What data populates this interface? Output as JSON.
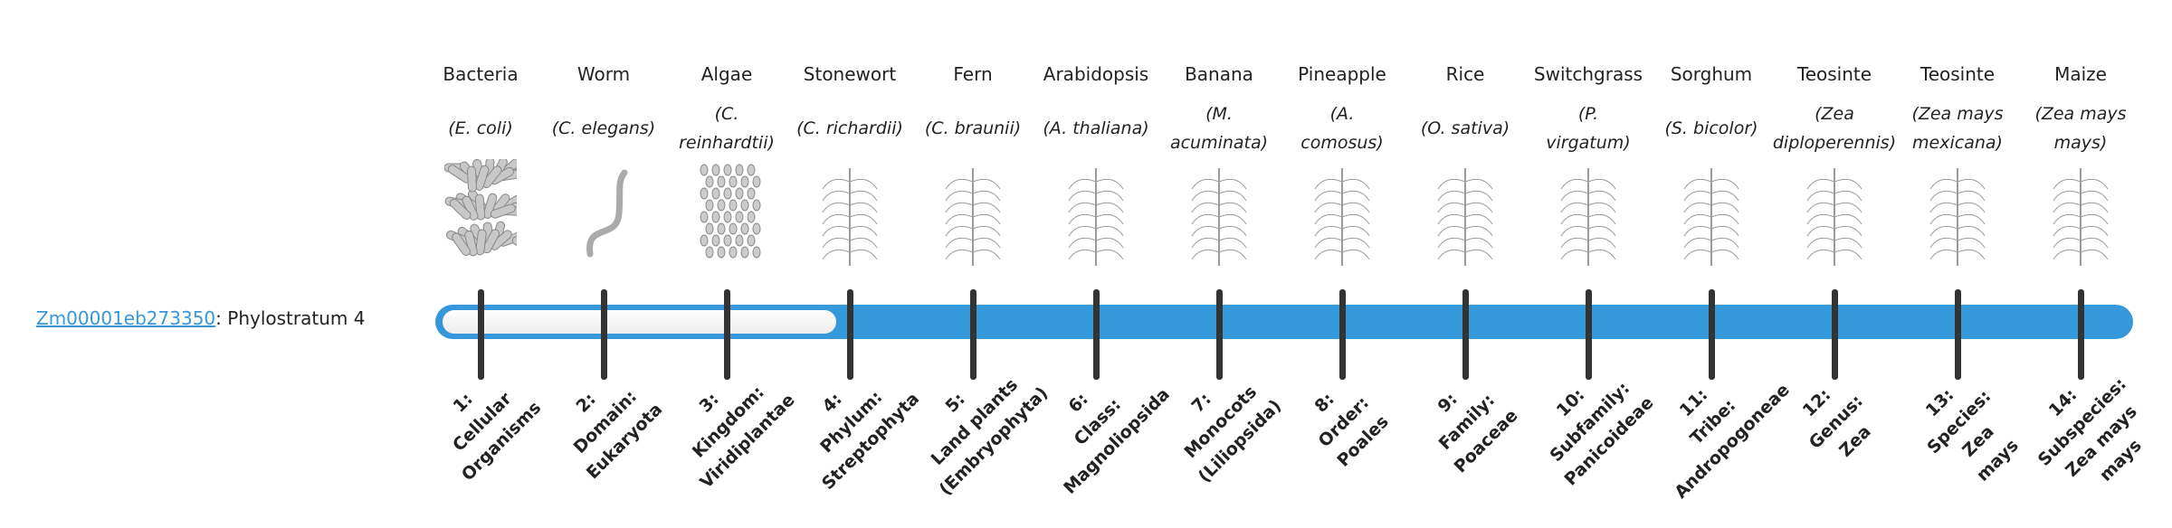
{
  "gene": {
    "id": "Zm00001eb273350",
    "suffix": ": Phylostratum 4"
  },
  "current_stratum": 4,
  "colors": {
    "accent": "#3498db",
    "tick": "#333333"
  },
  "organisms": [
    {
      "common": "Bacteria",
      "scientific": "(E. coli)",
      "icon": "bacteria-icon",
      "stratum": "1:\nCellular\nOrganisms"
    },
    {
      "common": "Worm",
      "scientific": "(C. elegans)",
      "icon": "worm-icon",
      "stratum": "2:\nDomain:\nEukaryota"
    },
    {
      "common": "Algae",
      "scientific": "(C.\nreinhardtii)",
      "icon": "algae-icon",
      "stratum": "3:\nKingdom:\nViridiplantae"
    },
    {
      "common": "Stonewort",
      "scientific": "(C. richardii)",
      "icon": "stonewort-icon",
      "stratum": "4:\nPhylum:\nStreptophyta"
    },
    {
      "common": "Fern",
      "scientific": "(C. braunii)",
      "icon": "fern-icon",
      "stratum": "5:\nLand plants\n(Embryophyta)"
    },
    {
      "common": "Arabidopsis",
      "scientific": "(A. thaliana)",
      "icon": "arabidopsis-icon",
      "stratum": "6:\nClass:\nMagnoliopsida"
    },
    {
      "common": "Banana",
      "scientific": "(M.\nacuminata)",
      "icon": "banana-icon",
      "stratum": "7:\nMonocots\n(Liliopsida)"
    },
    {
      "common": "Pineapple",
      "scientific": "(A.\ncomosus)",
      "icon": "pineapple-icon",
      "stratum": "8:\nOrder:\nPoales"
    },
    {
      "common": "Rice",
      "scientific": "(O. sativa)",
      "icon": "rice-icon",
      "stratum": "9:\nFamily:\nPoaceae"
    },
    {
      "common": "Switchgrass",
      "scientific": "(P.\nvirgatum)",
      "icon": "switchgrass-icon",
      "stratum": "10:\nSubfamily:\nPanicoideae"
    },
    {
      "common": "Sorghum",
      "scientific": "(S. bicolor)",
      "icon": "sorghum-icon",
      "stratum": "11:\nTribe:\nAndropogoneae"
    },
    {
      "common": "Teosinte",
      "scientific": "(Zea\ndiploperennis)",
      "icon": "teosinte-icon",
      "stratum": "12:\nGenus:\nZea"
    },
    {
      "common": "Teosinte",
      "scientific": "(Zea mays\nmexicana)",
      "icon": "teosinte-icon",
      "stratum": "13:\nSpecies:\nZea\nmays"
    },
    {
      "common": "Maize",
      "scientific": "(Zea mays\nmays)",
      "icon": "maize-icon",
      "stratum": "14:\nSubspecies:\nZea mays\nmays"
    }
  ]
}
